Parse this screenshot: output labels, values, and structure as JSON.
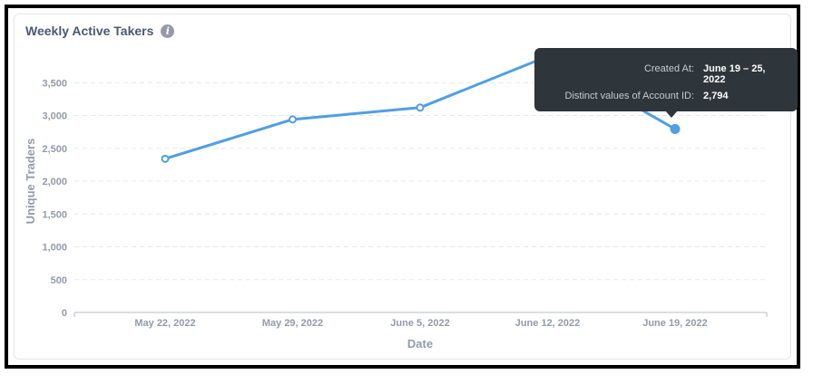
{
  "card": {
    "title": "Weekly Active Takers",
    "info_icon": "info-icon"
  },
  "tooltip": {
    "label_1": "Created At:",
    "value_1": "June 19 – 25, 2022",
    "label_2": "Distinct values of Account ID:",
    "value_2": "2,794"
  },
  "colors": {
    "line": "#509ee3",
    "grid": "#e6e8eb",
    "axis_text": "#949aab",
    "tooltip_bg": "#2e353b"
  },
  "chart_data": {
    "type": "line",
    "title": "Weekly Active Takers",
    "xlabel": "Date",
    "ylabel": "Unique Traders",
    "categories": [
      "May 22, 2022",
      "May 29, 2022",
      "June 5, 2022",
      "June 12, 2022",
      "June 19, 2022"
    ],
    "series": [
      {
        "values": [
          2340,
          2940,
          3120,
          3900,
          2794
        ]
      }
    ],
    "ylim": [
      0,
      4000
    ],
    "yticks": [
      0,
      500,
      1000,
      1500,
      2000,
      2500,
      3000,
      3500
    ],
    "ytick_labels": [
      "0",
      "500",
      "1,000",
      "1,500",
      "2,000",
      "2,500",
      "3,000",
      "3,500"
    ],
    "grid": true,
    "highlighted_index": 4
  }
}
